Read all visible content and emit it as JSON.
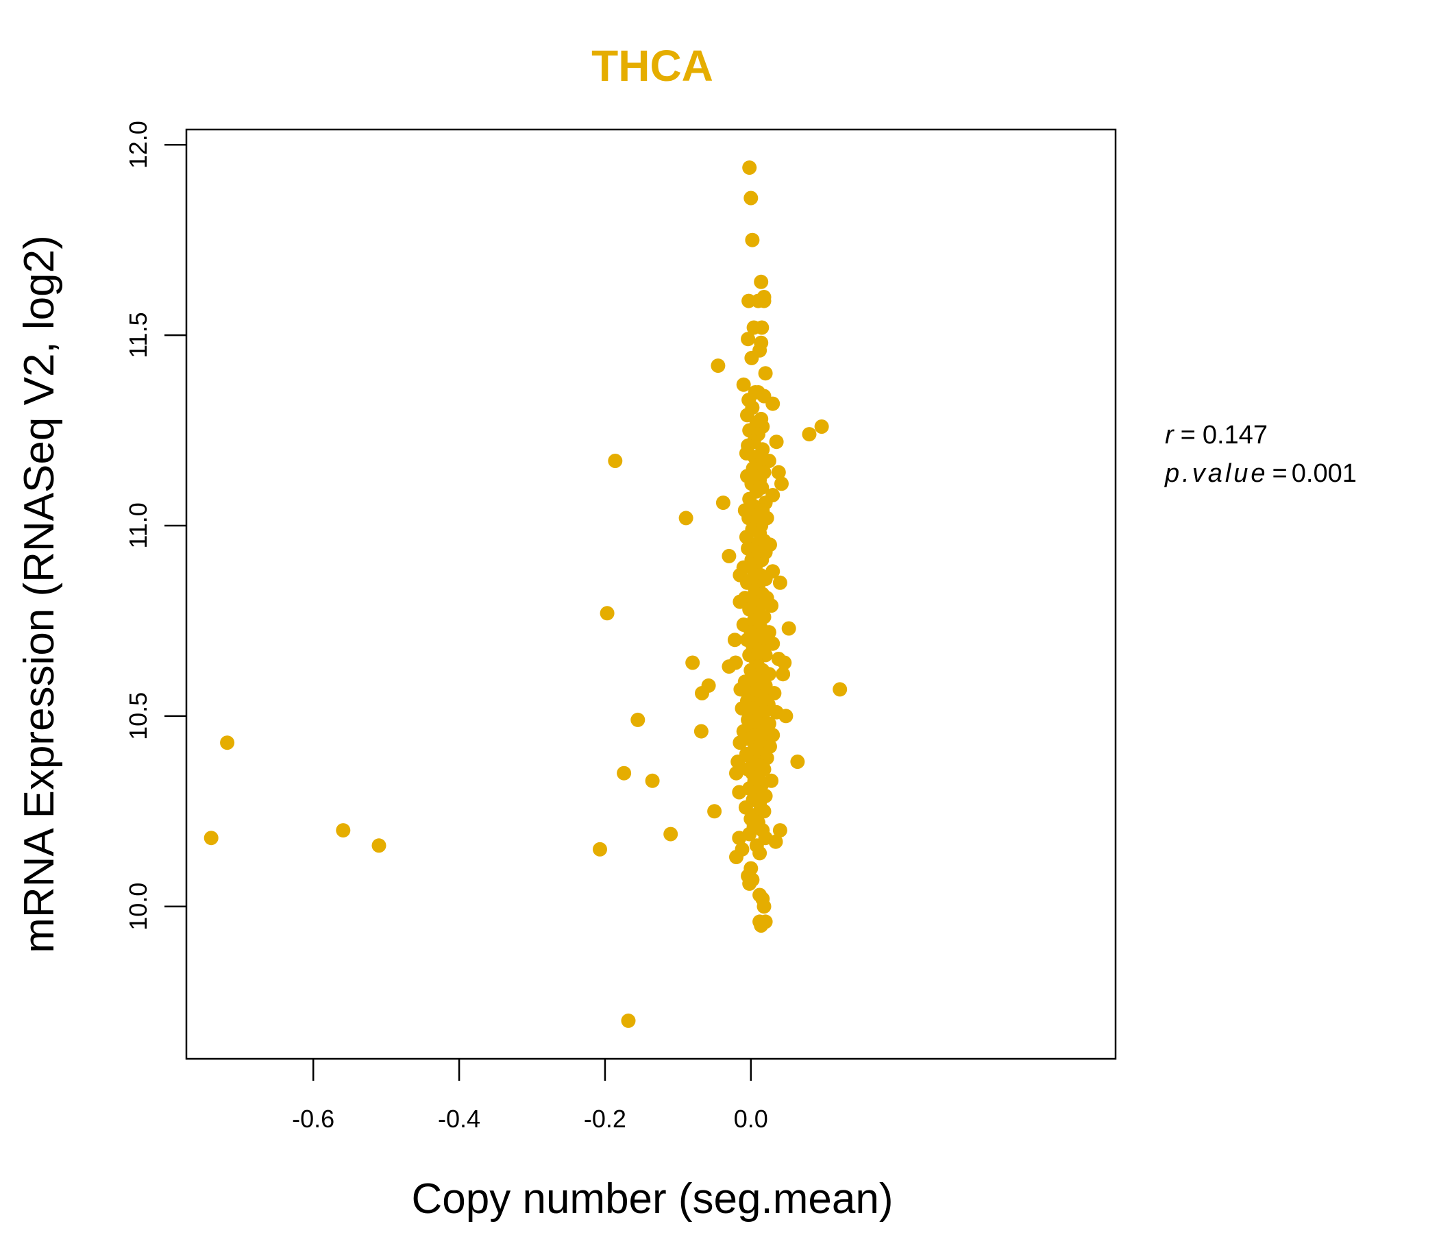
{
  "chart_data": {
    "type": "scatter",
    "title": "THCA",
    "xlabel": "Copy number (seg.mean)",
    "ylabel": "mRNA Expression (RNASeq V2, log2)",
    "xlim": [
      -0.774,
      0.5
    ],
    "ylim": [
      9.6,
      12.04
    ],
    "xticks": [
      -0.6,
      -0.4,
      -0.2,
      0.0
    ],
    "xtick_labels": [
      "-0.6",
      "-0.4",
      "-0.2",
      "0.0"
    ],
    "yticks": [
      10.0,
      10.5,
      11.0,
      11.5,
      12.0
    ],
    "ytick_labels": [
      "10.0",
      "10.5",
      "11.0",
      "11.5",
      "12.0"
    ],
    "grid": false,
    "colors": {
      "points": "#E5AD00",
      "title": "#E5AD00",
      "axes": "#000000"
    },
    "stats": {
      "r_label": "r",
      "r_value": "0.147",
      "p_label": "p.value",
      "p_value": "0.001",
      "equals": "="
    },
    "points": [
      [
        -0.002,
        11.94
      ],
      [
        0.0,
        11.86
      ],
      [
        0.002,
        11.75
      ],
      [
        0.014,
        11.64
      ],
      [
        0.018,
        11.6
      ],
      [
        -0.003,
        11.59
      ],
      [
        0.01,
        11.59
      ],
      [
        0.018,
        11.59
      ],
      [
        0.004,
        11.52
      ],
      [
        0.015,
        11.52
      ],
      [
        -0.004,
        11.49
      ],
      [
        0.014,
        11.48
      ],
      [
        0.012,
        11.46
      ],
      [
        0.001,
        11.44
      ],
      [
        -0.045,
        11.42
      ],
      [
        0.02,
        11.4
      ],
      [
        -0.01,
        11.37
      ],
      [
        0.006,
        11.35
      ],
      [
        0.01,
        11.35
      ],
      [
        0.018,
        11.34
      ],
      [
        -0.003,
        11.33
      ],
      [
        0.03,
        11.32
      ],
      [
        0.002,
        11.31
      ],
      [
        -0.005,
        11.29
      ],
      [
        0.014,
        11.28
      ],
      [
        0.008,
        11.27
      ],
      [
        0.016,
        11.26
      ],
      [
        0.097,
        11.26
      ],
      [
        -0.002,
        11.25
      ],
      [
        0.01,
        11.24
      ],
      [
        0.08,
        11.24
      ],
      [
        0.004,
        11.22
      ],
      [
        -0.004,
        11.21
      ],
      [
        0.035,
        11.22
      ],
      [
        0.016,
        11.2
      ],
      [
        -0.006,
        11.19
      ],
      [
        0.005,
        11.18
      ],
      [
        0.012,
        11.17
      ],
      [
        0.025,
        11.17
      ],
      [
        -0.186,
        11.17
      ],
      [
        0.01,
        11.16
      ],
      [
        0.003,
        11.15
      ],
      [
        0.018,
        11.14
      ],
      [
        0.038,
        11.14
      ],
      [
        -0.005,
        11.13
      ],
      [
        0.012,
        11.12
      ],
      [
        0.001,
        11.11
      ],
      [
        0.042,
        11.11
      ],
      [
        0.015,
        11.1
      ],
      [
        0.008,
        11.09
      ],
      [
        0.03,
        11.08
      ],
      [
        -0.002,
        11.07
      ],
      [
        -0.038,
        11.06
      ],
      [
        0.02,
        11.06
      ],
      [
        0.005,
        11.05
      ],
      [
        -0.008,
        11.04
      ],
      [
        0.016,
        11.04
      ],
      [
        0.01,
        11.03
      ],
      [
        -0.003,
        11.02
      ],
      [
        -0.089,
        11.02
      ],
      [
        0.022,
        11.02
      ],
      [
        0.006,
        11.01
      ],
      [
        0.014,
        11.0
      ],
      [
        0.002,
        10.99
      ],
      [
        0.012,
        10.98
      ],
      [
        -0.006,
        10.97
      ],
      [
        0.018,
        10.96
      ],
      [
        0.026,
        10.95
      ],
      [
        0.004,
        10.95
      ],
      [
        -0.004,
        10.94
      ],
      [
        0.01,
        10.93
      ],
      [
        0.02,
        10.93
      ],
      [
        -0.03,
        10.92
      ],
      [
        0.001,
        10.91
      ],
      [
        0.015,
        10.91
      ],
      [
        0.008,
        10.9
      ],
      [
        -0.01,
        10.89
      ],
      [
        0.005,
        10.88
      ],
      [
        0.03,
        10.88
      ],
      [
        0.013,
        10.87
      ],
      [
        -0.015,
        10.87
      ],
      [
        0.002,
        10.86
      ],
      [
        0.02,
        10.86
      ],
      [
        0.04,
        10.85
      ],
      [
        -0.005,
        10.85
      ],
      [
        0.01,
        10.84
      ],
      [
        0.006,
        10.83
      ],
      [
        0.016,
        10.82
      ],
      [
        -0.008,
        10.81
      ],
      [
        0.022,
        10.81
      ],
      [
        0.003,
        10.8
      ],
      [
        -0.015,
        10.8
      ],
      [
        0.012,
        10.79
      ],
      [
        0.028,
        10.79
      ],
      [
        -0.002,
        10.78
      ],
      [
        0.008,
        10.77
      ],
      [
        -0.197,
        10.77
      ],
      [
        0.018,
        10.76
      ],
      [
        0.004,
        10.75
      ],
      [
        -0.01,
        10.74
      ],
      [
        0.052,
        10.73
      ],
      [
        0.014,
        10.73
      ],
      [
        0.0,
        10.72
      ],
      [
        0.025,
        10.72
      ],
      [
        0.008,
        10.71
      ],
      [
        -0.005,
        10.7
      ],
      [
        -0.022,
        10.7
      ],
      [
        0.018,
        10.69
      ],
      [
        0.003,
        10.68
      ],
      [
        0.03,
        10.69
      ],
      [
        0.012,
        10.67
      ],
      [
        -0.002,
        10.66
      ],
      [
        0.02,
        10.66
      ],
      [
        0.038,
        10.65
      ],
      [
        0.006,
        10.65
      ],
      [
        -0.021,
        10.64
      ],
      [
        0.046,
        10.64
      ],
      [
        -0.08,
        10.64
      ],
      [
        0.01,
        10.63
      ],
      [
        -0.03,
        10.63
      ],
      [
        0.0,
        10.62
      ],
      [
        0.016,
        10.62
      ],
      [
        0.044,
        10.61
      ],
      [
        0.025,
        10.61
      ],
      [
        0.004,
        10.6
      ],
      [
        -0.008,
        10.59
      ],
      [
        0.012,
        10.59
      ],
      [
        -0.058,
        10.58
      ],
      [
        0.02,
        10.58
      ],
      [
        -0.014,
        10.57
      ],
      [
        0.007,
        10.57
      ],
      [
        0.122,
        10.57
      ],
      [
        -0.067,
        10.56
      ],
      [
        0.002,
        10.56
      ],
      [
        0.032,
        10.56
      ],
      [
        0.015,
        10.55
      ],
      [
        -0.005,
        10.54
      ],
      [
        0.01,
        10.53
      ],
      [
        0.024,
        10.53
      ],
      [
        -0.012,
        10.52
      ],
      [
        0.003,
        10.52
      ],
      [
        0.035,
        10.51
      ],
      [
        0.018,
        10.51
      ],
      [
        0.008,
        10.5
      ],
      [
        0.048,
        10.5
      ],
      [
        -0.004,
        10.49
      ],
      [
        -0.155,
        10.49
      ],
      [
        0.012,
        10.48
      ],
      [
        0.025,
        10.48
      ],
      [
        0.0,
        10.47
      ],
      [
        -0.01,
        10.46
      ],
      [
        -0.068,
        10.46
      ],
      [
        0.016,
        10.46
      ],
      [
        0.006,
        10.45
      ],
      [
        0.03,
        10.45
      ],
      [
        -0.002,
        10.44
      ],
      [
        0.02,
        10.43
      ],
      [
        -0.015,
        10.43
      ],
      [
        0.01,
        10.42
      ],
      [
        0.004,
        10.41
      ],
      [
        0.026,
        10.42
      ],
      [
        -0.006,
        10.4
      ],
      [
        0.014,
        10.4
      ],
      [
        -0.718,
        10.43
      ],
      [
        0.0,
        10.39
      ],
      [
        0.022,
        10.39
      ],
      [
        0.008,
        10.38
      ],
      [
        -0.018,
        10.38
      ],
      [
        0.064,
        10.38
      ],
      [
        0.012,
        10.37
      ],
      [
        -0.004,
        10.36
      ],
      [
        0.018,
        10.36
      ],
      [
        0.002,
        10.35
      ],
      [
        -0.02,
        10.35
      ],
      [
        -0.174,
        10.35
      ],
      [
        0.01,
        10.34
      ],
      [
        0.028,
        10.33
      ],
      [
        0.005,
        10.33
      ],
      [
        -0.135,
        10.33
      ],
      [
        0.015,
        10.32
      ],
      [
        -0.002,
        10.31
      ],
      [
        0.008,
        10.3
      ],
      [
        -0.016,
        10.3
      ],
      [
        0.02,
        10.29
      ],
      [
        0.003,
        10.28
      ],
      [
        0.012,
        10.27
      ],
      [
        -0.007,
        10.26
      ],
      [
        0.018,
        10.25
      ],
      [
        -0.05,
        10.25
      ],
      [
        0.006,
        10.24
      ],
      [
        0.0,
        10.23
      ],
      [
        0.01,
        10.22
      ],
      [
        0.004,
        10.21
      ],
      [
        0.016,
        10.2
      ],
      [
        0.04,
        10.2
      ],
      [
        -0.559,
        10.2
      ],
      [
        -0.002,
        10.19
      ],
      [
        -0.11,
        10.19
      ],
      [
        0.02,
        10.18
      ],
      [
        -0.016,
        10.18
      ],
      [
        0.034,
        10.17
      ],
      [
        -0.74,
        10.18
      ],
      [
        0.008,
        10.16
      ],
      [
        -0.012,
        10.15
      ],
      [
        -0.51,
        10.16
      ],
      [
        0.012,
        10.14
      ],
      [
        -0.02,
        10.13
      ],
      [
        -0.207,
        10.15
      ],
      [
        0.0,
        10.1
      ],
      [
        -0.004,
        10.08
      ],
      [
        0.002,
        10.07
      ],
      [
        -0.002,
        10.06
      ],
      [
        0.012,
        10.03
      ],
      [
        0.016,
        10.02
      ],
      [
        0.018,
        10.0
      ],
      [
        0.012,
        9.96
      ],
      [
        0.02,
        9.96
      ],
      [
        0.014,
        9.95
      ],
      [
        -0.168,
        9.7
      ]
    ]
  }
}
